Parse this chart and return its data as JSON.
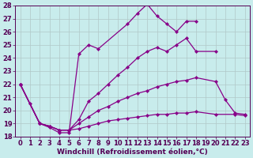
{
  "x_range": [
    -0.5,
    23.5
  ],
  "y_range": [
    18,
    28
  ],
  "background_color": "#c8ecec",
  "grid_color": "#b0c8c8",
  "line_color": "#880088",
  "marker": "D",
  "markersize": 2.2,
  "linewidth": 0.9,
  "xlabel": "Windchill (Refroidissement éolien,°C)",
  "xlabel_fontsize": 6.5,
  "tick_fontsize": 6.0,
  "line1_x": [
    0,
    1,
    2,
    3,
    4,
    5,
    6,
    7,
    8,
    11,
    12,
    13,
    14,
    15,
    16,
    17,
    18
  ],
  "line1_y": [
    22.0,
    20.5,
    19.0,
    18.7,
    18.3,
    18.3,
    24.3,
    25.0,
    24.7,
    26.6,
    27.4,
    28.1,
    27.2,
    26.6,
    26.0,
    26.8,
    26.8
  ],
  "line2_x": [
    0,
    2,
    3,
    4,
    5,
    6,
    7,
    8,
    9,
    10,
    11,
    12,
    13,
    14,
    15,
    16,
    17,
    18,
    20
  ],
  "line2_y": [
    22.0,
    19.0,
    18.8,
    18.5,
    18.5,
    19.3,
    20.7,
    21.3,
    22.0,
    22.7,
    23.3,
    24.0,
    24.5,
    24.8,
    24.5,
    25.0,
    25.5,
    24.5,
    24.5
  ],
  "line3_x": [
    0,
    2,
    3,
    4,
    5,
    6,
    7,
    8,
    9,
    10,
    11,
    12,
    13,
    14,
    15,
    16,
    17,
    18,
    20,
    21,
    22,
    23
  ],
  "line3_y": [
    22.0,
    19.0,
    18.8,
    18.5,
    18.5,
    19.0,
    19.5,
    20.0,
    20.3,
    20.7,
    21.0,
    21.3,
    21.5,
    21.8,
    22.0,
    22.2,
    22.3,
    22.5,
    22.2,
    20.8,
    19.8,
    19.7
  ],
  "line4_x": [
    0,
    2,
    3,
    4,
    5,
    6,
    7,
    8,
    9,
    10,
    11,
    12,
    13,
    14,
    15,
    16,
    17,
    18,
    20,
    22,
    23
  ],
  "line4_y": [
    22.0,
    19.0,
    18.8,
    18.5,
    18.5,
    18.6,
    18.8,
    19.0,
    19.2,
    19.3,
    19.4,
    19.5,
    19.6,
    19.7,
    19.7,
    19.8,
    19.8,
    19.9,
    19.7,
    19.7,
    19.6
  ]
}
